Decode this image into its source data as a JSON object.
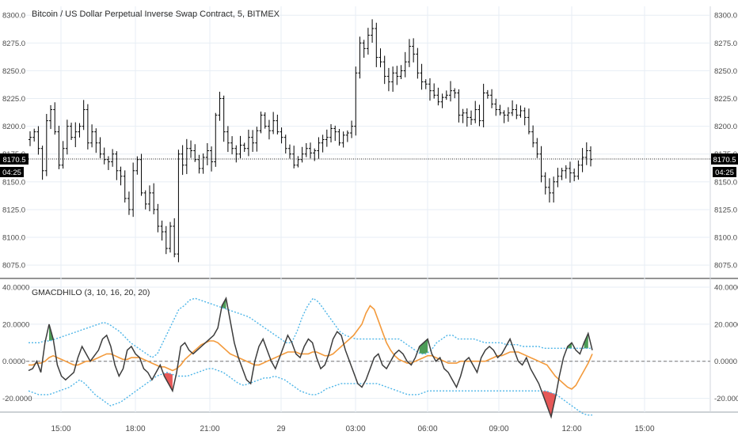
{
  "main_title": "Bitcoin / US Dollar Perpetual Inverse Swap Contract, 5, BITMEX",
  "indicator_title": "GMACDHILO (3, 10, 16, 20, 20)",
  "colors": {
    "background": "#ffffff",
    "grid": "#e7eef4",
    "axis_text": "#4a4a4a",
    "candle": "#000000",
    "macd_line": "#3c3c3c",
    "signal_line": "#f39a3c",
    "band_line": "#4fb6e8",
    "fill_up": "#2e8b3a",
    "fill_down": "#e23b3b",
    "price_tag_bg": "#000000",
    "price_tag_text": "#ffffff"
  },
  "price_marker": {
    "price": "8170.5",
    "countdown": "04:25"
  },
  "chart_data": [
    {
      "type": "candlestick",
      "title": "Bitcoin / US Dollar Perpetual Inverse Swap Contract, 5, BITMEX",
      "timeframe": "5",
      "exchange": "BITMEX",
      "x_tick_labels": [
        "15:00",
        "18:00",
        "21:00",
        "29",
        "03:00",
        "06:00",
        "09:00",
        "12:00",
        "15:00"
      ],
      "y_tick_labels": [
        "8075.0",
        "8100.0",
        "8125.0",
        "8150.0",
        "8175.0",
        "8200.0",
        "8225.0",
        "8250.0",
        "8275.0",
        "8300.0"
      ],
      "ylim": [
        8063,
        8308
      ],
      "last_price": 8170.5,
      "grid": true,
      "close_series": [
        8190,
        8195,
        8180,
        8160,
        8205,
        8215,
        8195,
        8165,
        8180,
        8200,
        8190,
        8195,
        8200,
        8215,
        8185,
        8195,
        8185,
        8175,
        8170,
        8168,
        8175,
        8160,
        8155,
        8135,
        8125,
        8160,
        8170,
        8140,
        8130,
        8140,
        8125,
        8110,
        8105,
        8090,
        8110,
        8085,
        8175,
        8165,
        8180,
        8178,
        8170,
        8162,
        8172,
        8178,
        8168,
        8210,
        8225,
        8195,
        8185,
        8180,
        8175,
        8183,
        8180,
        8190,
        8185,
        8196,
        8210,
        8200,
        8196,
        8205,
        8195,
        8190,
        8180,
        8175,
        8165,
        8170,
        8175,
        8180,
        8176,
        8178,
        8185,
        8188,
        8190,
        8198,
        8195,
        8185,
        8192,
        8194,
        8200,
        8248,
        8275,
        8270,
        8282,
        8288,
        8262,
        8258,
        8245,
        8240,
        8248,
        8245,
        8250,
        8258,
        8272,
        8265,
        8248,
        8240,
        8238,
        8232,
        8228,
        8222,
        8226,
        8228,
        8232,
        8230,
        8210,
        8212,
        8208,
        8206,
        8215,
        8205,
        8230,
        8228,
        8220,
        8215,
        8212,
        8210,
        8212,
        8215,
        8210,
        8214,
        8208,
        8195,
        8185,
        8175,
        8155,
        8145,
        8140,
        8150,
        8155,
        8160,
        8162,
        8158,
        8155,
        8165,
        8172,
        8178,
        8170
      ]
    },
    {
      "type": "line",
      "title": "GMACDHILO (3, 10, 16, 20, 20)",
      "y_tick_labels": [
        "-20.0000",
        "0.0000",
        "20.0000",
        "40.0000"
      ],
      "ylim": [
        -27,
        43
      ],
      "zero_line": true,
      "grid": true,
      "series": [
        {
          "values": [
            -5,
            -4,
            0,
            -6,
            10,
            20,
            12,
            -2,
            -8,
            -10,
            -8,
            -6,
            2,
            8,
            4,
            0,
            3,
            6,
            12,
            14,
            8,
            -2,
            -8,
            -4,
            6,
            8,
            4,
            2,
            -4,
            -6,
            -10,
            -6,
            -2,
            -8,
            -12,
            -16,
            -6,
            8,
            10,
            6,
            4,
            6,
            8,
            10,
            12,
            14,
            18,
            30,
            34,
            22,
            10,
            2,
            -4,
            -10,
            -12,
            0,
            8,
            12,
            6,
            0,
            -4,
            2,
            8,
            14,
            10,
            4,
            2,
            8,
            12,
            10,
            2,
            -4,
            -2,
            4,
            12,
            16,
            14,
            6,
            0,
            -6,
            -12,
            -14,
            -10,
            -4,
            2,
            4,
            -2,
            -4,
            0,
            4,
            6,
            4,
            0,
            -2,
            2,
            8,
            10,
            12,
            4,
            0,
            2,
            -4,
            -6,
            -10,
            -14,
            -8,
            0,
            2,
            -2,
            -6,
            2,
            6,
            8,
            6,
            2,
            4,
            8,
            12,
            6,
            0,
            -2,
            2,
            -4,
            -8,
            -12,
            -18,
            -24,
            -30,
            -20,
            -8,
            2,
            8,
            10,
            6,
            4,
            10,
            15,
            6
          ]
        },
        {
          "values": [
            -2,
            -2,
            -1,
            -1,
            0,
            2,
            3,
            2,
            1,
            0,
            -1,
            -2,
            -2,
            -1,
            0,
            0,
            1,
            2,
            3,
            4,
            4,
            3,
            2,
            1,
            1,
            2,
            2,
            2,
            1,
            0,
            -1,
            -2,
            -3,
            -3,
            -4,
            -5,
            -4,
            -2,
            1,
            3,
            5,
            7,
            9,
            10,
            11,
            11,
            10,
            8,
            6,
            4,
            3,
            2,
            1,
            0,
            -1,
            -2,
            -2,
            -1,
            0,
            1,
            2,
            3,
            4,
            5,
            5,
            5,
            4,
            4,
            4,
            5,
            5,
            4,
            3,
            3,
            4,
            6,
            8,
            10,
            12,
            14,
            17,
            20,
            26,
            30,
            28,
            22,
            16,
            10,
            6,
            3,
            1,
            0,
            -1,
            -1,
            0,
            1,
            2,
            3,
            3,
            2,
            1,
            0,
            -1,
            -1,
            -1,
            0,
            0,
            0,
            0,
            0,
            0,
            0,
            1,
            2,
            3,
            3,
            4,
            5,
            5,
            5,
            4,
            3,
            2,
            1,
            0,
            -1,
            -2,
            -5,
            -8,
            -10,
            -12,
            -14,
            -15,
            -13,
            -9,
            -5,
            -1,
            4
          ]
        },
        {
          "values": [
            10,
            10,
            10,
            11,
            11,
            12,
            13,
            14,
            15,
            16,
            17,
            18,
            19,
            20,
            21,
            20,
            18,
            16,
            13,
            10,
            8,
            6,
            4,
            2,
            4,
            10,
            16,
            22,
            28,
            30,
            33,
            34,
            33,
            32,
            31,
            30,
            29,
            28,
            27,
            26,
            25,
            24,
            22,
            20,
            18,
            16,
            14,
            12,
            10,
            10,
            16,
            24,
            30,
            34,
            32,
            28,
            24,
            20,
            16,
            14,
            13,
            12,
            12,
            12,
            12,
            12,
            12,
            12,
            12,
            12,
            10,
            8,
            6,
            4,
            4,
            6,
            10,
            12,
            14,
            14,
            12,
            12,
            12,
            12,
            11,
            10,
            10,
            10,
            10,
            9,
            9,
            9,
            8,
            8,
            8,
            8,
            7,
            7,
            7,
            7,
            7,
            7,
            7,
            7,
            7,
            7
          ]
        },
        {
          "values": [
            -16,
            -17,
            -18,
            -18,
            -18,
            -17,
            -16,
            -15,
            -14,
            -12,
            -10,
            -12,
            -15,
            -18,
            -20,
            -22,
            -24,
            -23,
            -22,
            -20,
            -18,
            -16,
            -14,
            -12,
            -10,
            -8,
            -7,
            -6,
            -7,
            -8,
            -8,
            -8,
            -7,
            -6,
            -5,
            -4,
            -4,
            -5,
            -6,
            -8,
            -10,
            -12,
            -13,
            -12,
            -11,
            -10,
            -9,
            -9,
            -8,
            -9,
            -10,
            -12,
            -14,
            -16,
            -17,
            -18,
            -18,
            -17,
            -15,
            -14,
            -13,
            -12,
            -12,
            -12,
            -12,
            -12,
            -12,
            -12,
            -12,
            -13,
            -14,
            -15,
            -16,
            -17,
            -18,
            -18,
            -18,
            -17,
            -16,
            -16,
            -16,
            -16,
            -16,
            -16,
            -16,
            -16,
            -16,
            -16,
            -16,
            -16,
            -16,
            -16,
            -16,
            -16,
            -16,
            -16,
            -16,
            -16,
            -16,
            -16,
            -16,
            -16,
            -17,
            -18,
            -20,
            -22,
            -24,
            -26,
            -28,
            -29,
            -29
          ]
        }
      ]
    }
  ]
}
